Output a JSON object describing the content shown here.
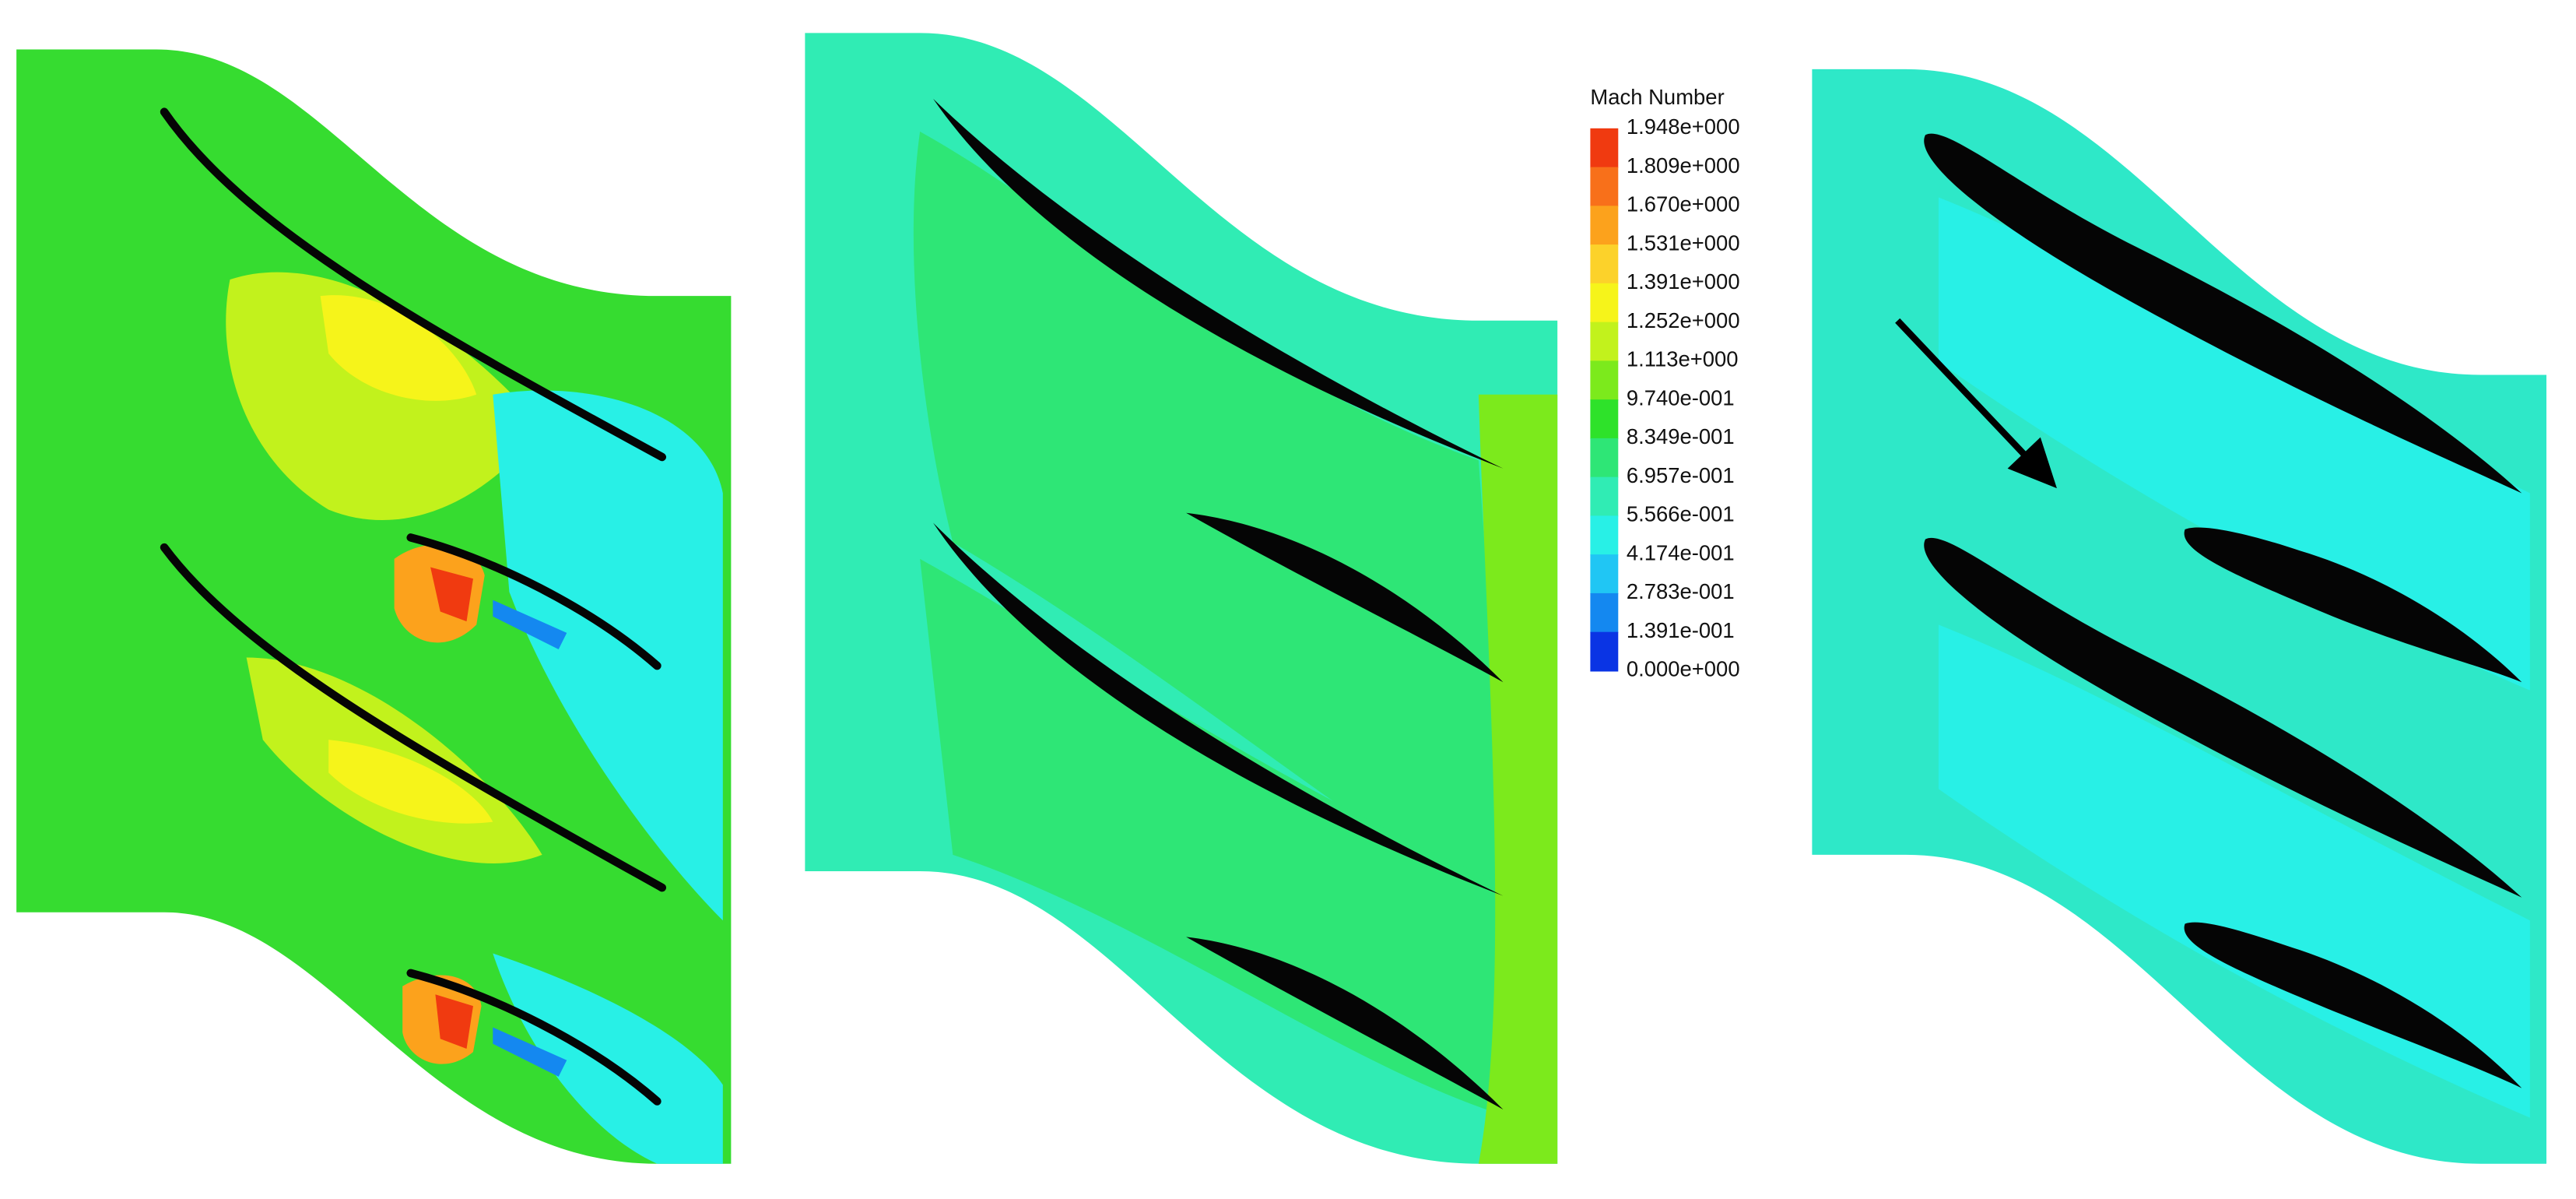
{
  "legend": {
    "title": "Mach Number",
    "labels": [
      "1.948e+000",
      "1.809e+000",
      "1.670e+000",
      "1.531e+000",
      "1.391e+000",
      "1.252e+000",
      "1.113e+000",
      "9.740e-001",
      "8.349e-001",
      "6.957e-001",
      "5.566e-001",
      "4.174e-001",
      "2.783e-001",
      "1.391e-001",
      "0.000e+000"
    ],
    "colors": [
      "#f03a10",
      "#f8701a",
      "#fca21c",
      "#fcd22a",
      "#f6f41a",
      "#c2f21c",
      "#7cea1c",
      "#2ee22a",
      "#2ee676",
      "#30ecb4",
      "#28f0e6",
      "#20c6f4",
      "#1488f0",
      "#0a34e4"
    ]
  }
}
